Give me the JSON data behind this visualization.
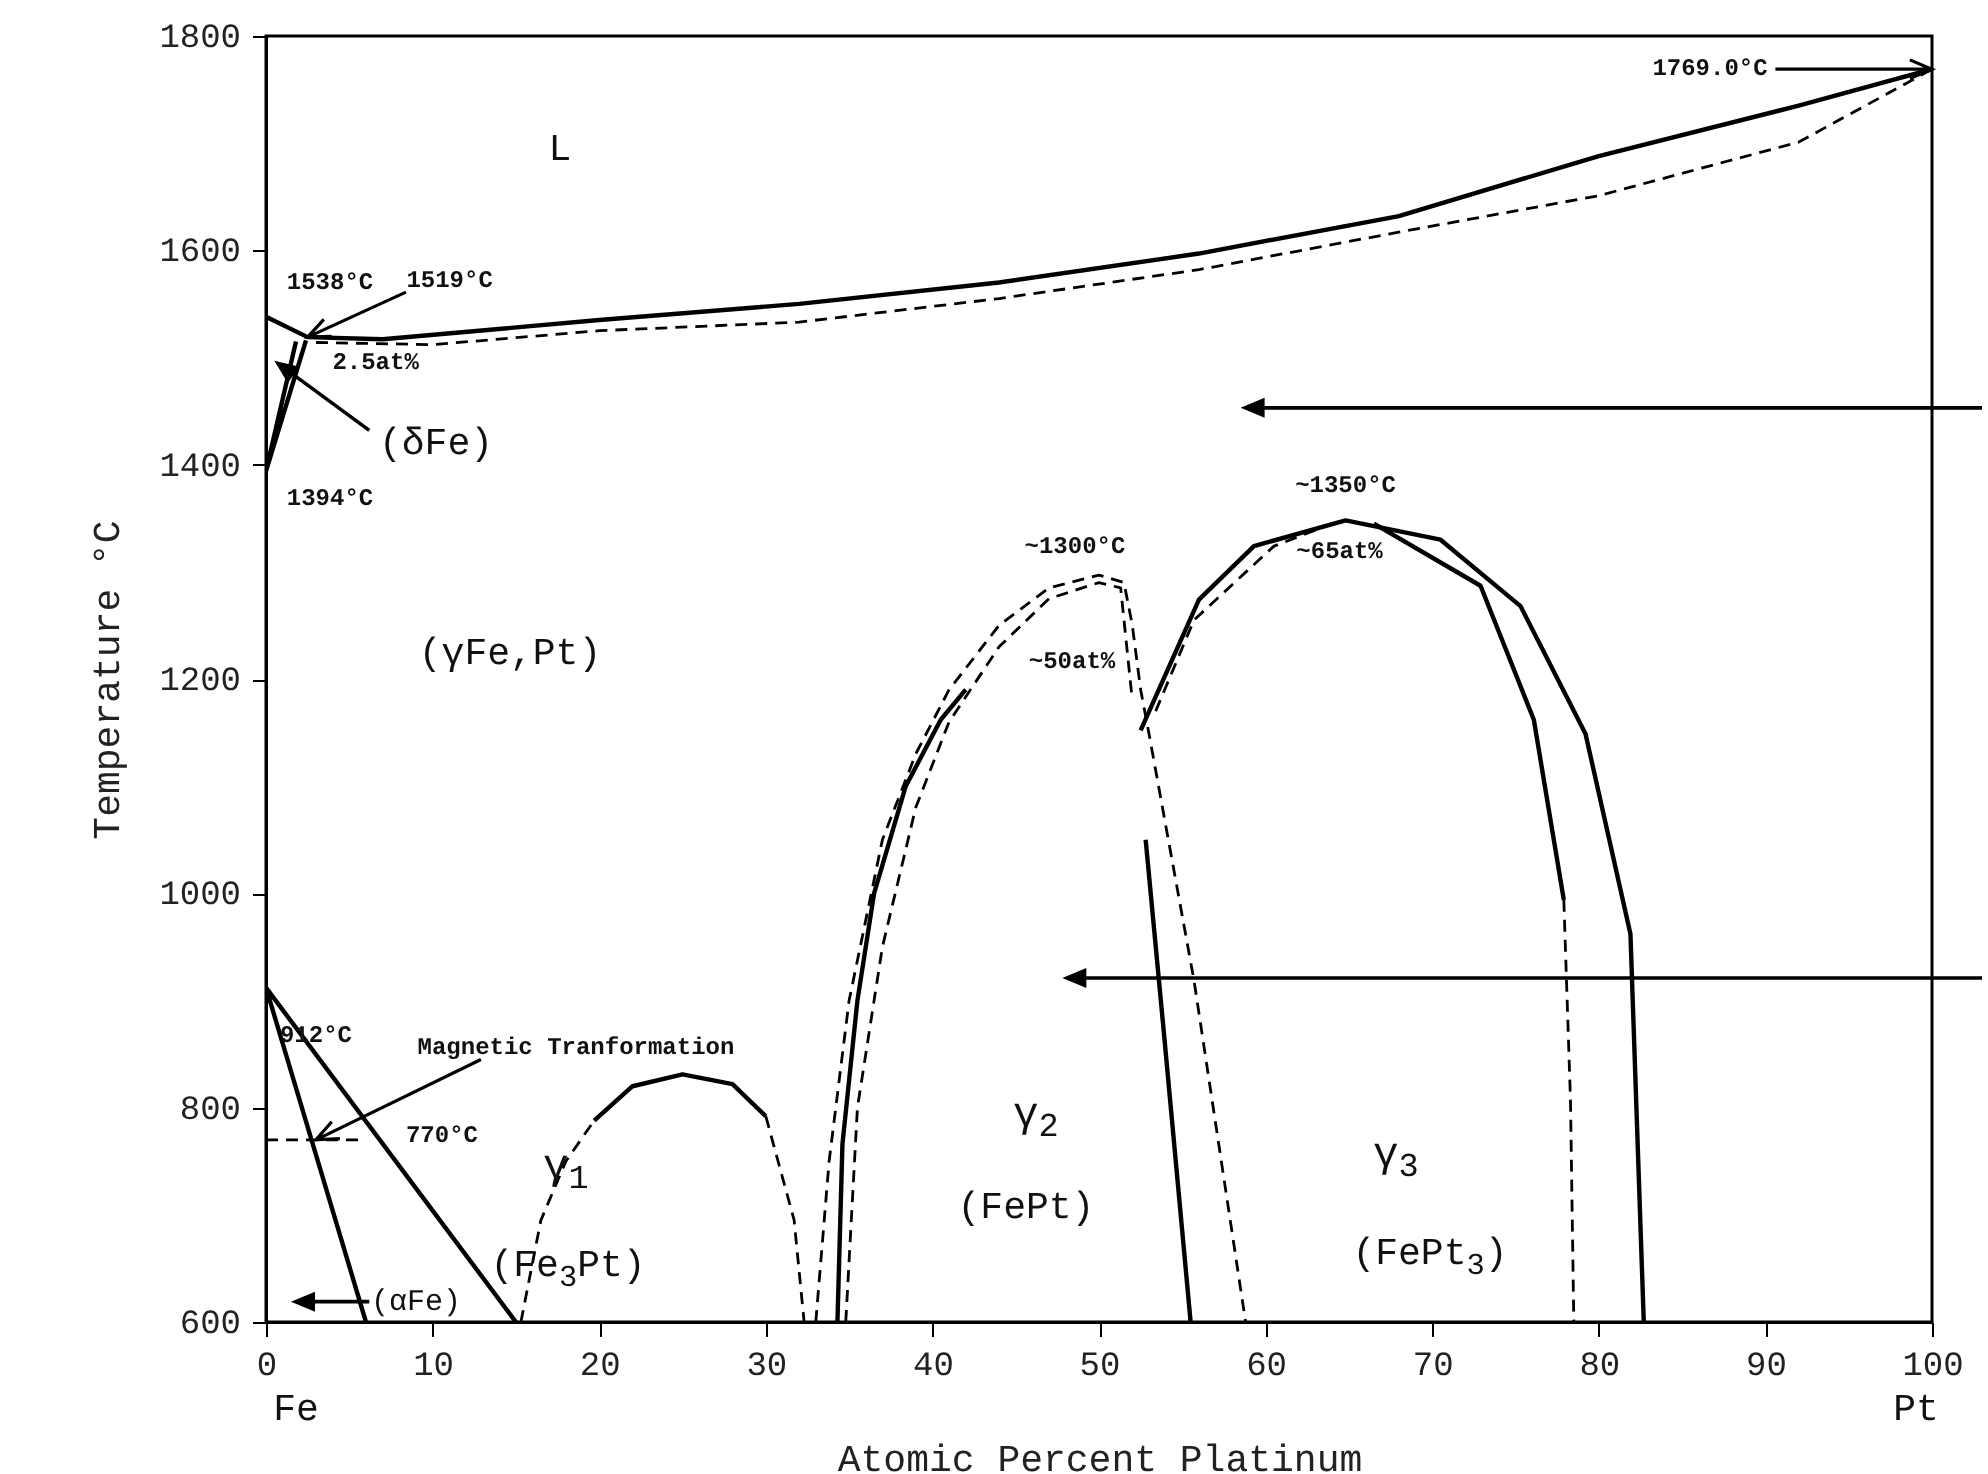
{
  "chart_data": {
    "type": "line",
    "xlabel": "Atomic Percent Platinum",
    "ylabel": "Temperature °C",
    "xlim": [
      0,
      100
    ],
    "ylim": [
      600,
      1800
    ],
    "xticks": [
      0,
      10,
      20,
      30,
      40,
      50,
      60,
      70,
      80,
      90,
      100
    ],
    "yticks": [
      600,
      800,
      1000,
      1200,
      1400,
      1600,
      1800
    ],
    "grid": false,
    "series": [
      {
        "color": "#000000",
        "line_style": "solid",
        "x": [
          0,
          2.5,
          7,
          20,
          32,
          44,
          56,
          68,
          80,
          92,
          100
        ],
        "values": [
          1538,
          1519,
          1517,
          1535,
          1550,
          1570,
          1597,
          1632,
          1688,
          1735,
          1769
        ]
      },
      {
        "color": "#000000",
        "line_style": "dashed",
        "x": [
          3,
          10,
          20,
          32,
          44,
          56,
          68,
          80,
          92,
          100
        ],
        "values": [
          1514,
          1512,
          1525,
          1533,
          1555,
          1582,
          1617,
          1651,
          1701,
          1769
        ]
      },
      {
        "color": "#000000",
        "line_style": "solid",
        "x": [
          1.8,
          0,
          2.4
        ],
        "values": [
          1515,
          1394,
          1516
        ]
      },
      {
        "color": "#000000",
        "line_style": "solid",
        "x": [
          6,
          0,
          15
        ],
        "values": [
          600,
          912,
          600
        ]
      },
      {
        "color": "#000000",
        "line_style": "dashed",
        "x": [
          0,
          6
        ],
        "values": [
          770,
          770
        ]
      },
      {
        "color": "#000000",
        "line_style": "dashed",
        "x": [
          15.3,
          16.5,
          18,
          19.7
        ],
        "values": [
          600,
          695,
          750,
          788
        ]
      },
      {
        "color": "#000000",
        "line_style": "solid",
        "x": [
          19.7,
          22,
          25,
          28,
          30
        ],
        "values": [
          788,
          820,
          831,
          822,
          792
        ]
      },
      {
        "color": "#000000",
        "line_style": "dashed",
        "x": [
          30,
          31.7,
          32.3
        ],
        "values": [
          792,
          695,
          600
        ]
      },
      {
        "color": "#000000",
        "line_style": "solid",
        "x": [
          34.3,
          34.6,
          35.5,
          36.5,
          38.4,
          40.5,
          42
        ],
        "values": [
          600,
          766,
          900,
          1000,
          1100,
          1162,
          1190
        ]
      },
      {
        "color": "#000000",
        "line_style": "dashed",
        "x": [
          33,
          33.8,
          35,
          37,
          39,
          41,
          44,
          47,
          50,
          51.5,
          52,
          52.5,
          53,
          55.7,
          58.8
        ],
        "values": [
          600,
          750,
          900,
          1050,
          1130,
          1190,
          1250,
          1285,
          1297,
          1290,
          1250,
          1190,
          1149,
          919,
          600
        ]
      },
      {
        "color": "#000000",
        "line_style": "dashed",
        "x": [
          34.8,
          35.5,
          37,
          39,
          41,
          44,
          47,
          50,
          51.3,
          51.6,
          52
        ],
        "values": [
          600,
          800,
          950,
          1080,
          1160,
          1230,
          1275,
          1290,
          1285,
          1240,
          1180
        ]
      },
      {
        "color": "#000000",
        "line_style": "solid",
        "x": [
          52.8,
          53.9,
          55.5
        ],
        "values": [
          1050,
          869,
          600
        ]
      },
      {
        "color": "#000000",
        "line_style": "solid",
        "x": [
          52.5,
          56,
          59.3,
          64.8,
          70.5,
          75.3,
          79.2,
          81.9,
          82.7
        ],
        "values": [
          1152,
          1274,
          1324,
          1348,
          1330,
          1268,
          1149,
          962,
          600
        ]
      },
      {
        "color": "#000000",
        "line_style": "solid",
        "x": [
          66.5,
          72.9,
          76.1,
          77.9
        ],
        "values": [
          1345,
          1287,
          1162,
          994
        ]
      },
      {
        "color": "#000000",
        "line_style": "dashed",
        "x": [
          77.9,
          78.3,
          78.5
        ],
        "values": [
          994,
          807,
          600
        ]
      },
      {
        "color": "#000000",
        "line_style": "dashed",
        "x": [
          53.4,
          55.7,
          60.5,
          64
        ],
        "values": [
          1170,
          1255,
          1324,
          1345
        ]
      }
    ],
    "annotations": [
      "L",
      {
        "text": "1769.0°C",
        "x": 100,
        "y": 1769
      },
      {
        "text": "1538°C",
        "x": 0,
        "y": 1538
      },
      {
        "text": "1519°C",
        "x": 2.5,
        "y": 1519
      },
      {
        "text": "2.5at%",
        "x": 2.5,
        "y": 1519
      },
      "(δFe)",
      {
        "text": "1394°C",
        "x": 0,
        "y": 1394
      },
      "(γFe,Pt)",
      {
        "text": "~1300°C",
        "x": 50,
        "y": 1297
      },
      "~50at%",
      {
        "text": "~1350°C",
        "x": 64.8,
        "y": 1348
      },
      {
        "text": "~65at%",
        "x": 64.8,
        "y": 1348
      },
      {
        "text": "912°C",
        "x": 0,
        "y": 912
      },
      {
        "text": "Magnetic Tranformation",
        "x": 3,
        "y": 770
      },
      {
        "text": "770°C",
        "x": 6,
        "y": 770
      },
      "γ$_{1}$",
      "(Fe$_{3}$Pt)",
      "γ$_{2}$",
      "(FePt)",
      "γ$_{3}$",
      "(FePt$_{3}$)",
      "(αFe)",
      "Fe",
      "Pt"
    ]
  }
}
